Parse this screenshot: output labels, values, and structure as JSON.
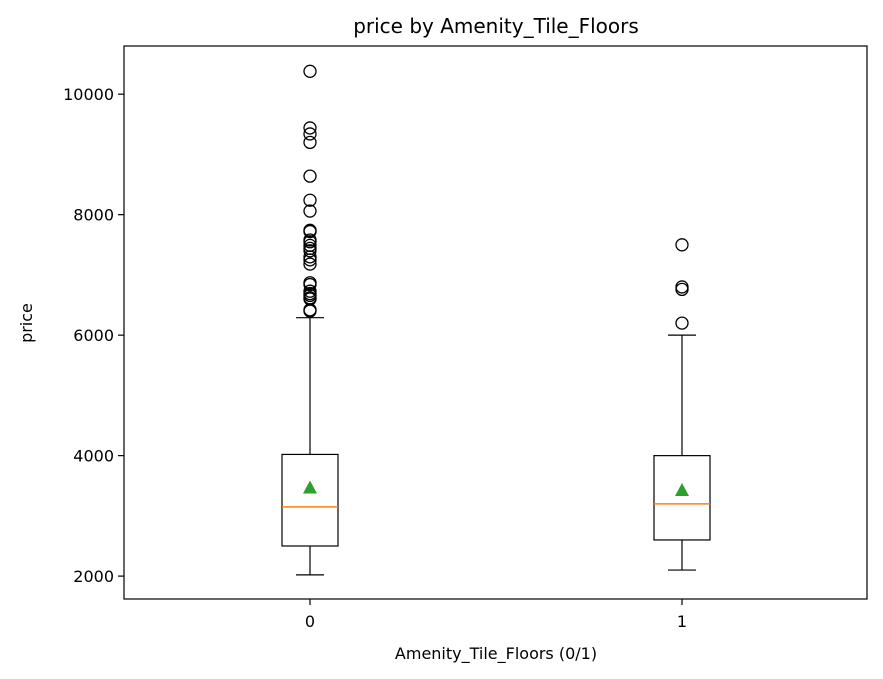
{
  "chart_data": {
    "type": "box",
    "title": "price by Amenity_Tile_Floors",
    "xlabel": "Amenity_Tile_Floors (0/1)",
    "ylabel": "price",
    "categories": [
      "0",
      "1"
    ],
    "ylim": [
      1620,
      10800
    ],
    "yticks": [
      2000,
      4000,
      6000,
      8000,
      10000
    ],
    "grid": false,
    "colors": {
      "box": "#000000",
      "median": "#ff7f0e",
      "mean": "#2ca02c",
      "flier": "#000000"
    },
    "boxes": [
      {
        "category": "0",
        "whisker_low": 2020,
        "q1": 2500,
        "median": 3150,
        "q3": 4020,
        "whisker_high": 6290,
        "mean": 3470,
        "outliers": [
          10380,
          9440,
          9340,
          9200,
          8640,
          8240,
          8060,
          7740,
          7720,
          7580,
          7550,
          7490,
          7440,
          7400,
          7300,
          7250,
          7180,
          6870,
          6840,
          6730,
          6690,
          6660,
          6620,
          6600,
          6420,
          6400
        ]
      },
      {
        "category": "1",
        "whisker_low": 2100,
        "q1": 2600,
        "median": 3200,
        "q3": 4000,
        "whisker_high": 6000,
        "mean": 3430,
        "outliers": [
          7500,
          6800,
          6760,
          6200
        ]
      }
    ]
  }
}
